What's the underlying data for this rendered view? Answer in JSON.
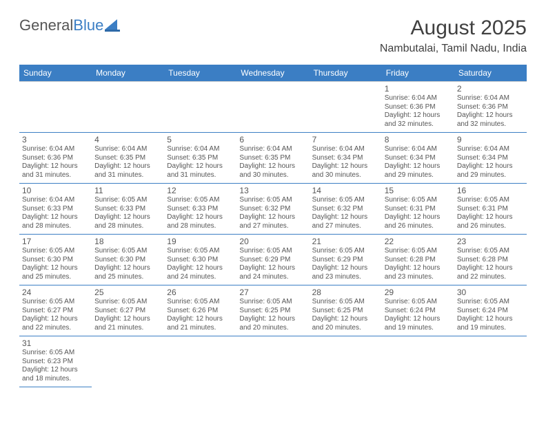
{
  "logo": {
    "text1": "General",
    "text2": "Blue"
  },
  "title": "August 2025",
  "location": "Nambutalai, Tamil Nadu, India",
  "colors": {
    "header_bg": "#3b7ec4",
    "header_fg": "#ffffff",
    "row_border": "#3b7ec4",
    "text": "#555555",
    "background": "#ffffff"
  },
  "weekdays": [
    "Sunday",
    "Monday",
    "Tuesday",
    "Wednesday",
    "Thursday",
    "Friday",
    "Saturday"
  ],
  "labels": {
    "sunrise": "Sunrise:",
    "sunset": "Sunset:",
    "daylight": "Daylight:"
  },
  "days": {
    "1": {
      "sunrise": "6:04 AM",
      "sunset": "6:36 PM",
      "daylight": "12 hours and 32 minutes."
    },
    "2": {
      "sunrise": "6:04 AM",
      "sunset": "6:36 PM",
      "daylight": "12 hours and 32 minutes."
    },
    "3": {
      "sunrise": "6:04 AM",
      "sunset": "6:36 PM",
      "daylight": "12 hours and 31 minutes."
    },
    "4": {
      "sunrise": "6:04 AM",
      "sunset": "6:35 PM",
      "daylight": "12 hours and 31 minutes."
    },
    "5": {
      "sunrise": "6:04 AM",
      "sunset": "6:35 PM",
      "daylight": "12 hours and 31 minutes."
    },
    "6": {
      "sunrise": "6:04 AM",
      "sunset": "6:35 PM",
      "daylight": "12 hours and 30 minutes."
    },
    "7": {
      "sunrise": "6:04 AM",
      "sunset": "6:34 PM",
      "daylight": "12 hours and 30 minutes."
    },
    "8": {
      "sunrise": "6:04 AM",
      "sunset": "6:34 PM",
      "daylight": "12 hours and 29 minutes."
    },
    "9": {
      "sunrise": "6:04 AM",
      "sunset": "6:34 PM",
      "daylight": "12 hours and 29 minutes."
    },
    "10": {
      "sunrise": "6:04 AM",
      "sunset": "6:33 PM",
      "daylight": "12 hours and 28 minutes."
    },
    "11": {
      "sunrise": "6:05 AM",
      "sunset": "6:33 PM",
      "daylight": "12 hours and 28 minutes."
    },
    "12": {
      "sunrise": "6:05 AM",
      "sunset": "6:33 PM",
      "daylight": "12 hours and 28 minutes."
    },
    "13": {
      "sunrise": "6:05 AM",
      "sunset": "6:32 PM",
      "daylight": "12 hours and 27 minutes."
    },
    "14": {
      "sunrise": "6:05 AM",
      "sunset": "6:32 PM",
      "daylight": "12 hours and 27 minutes."
    },
    "15": {
      "sunrise": "6:05 AM",
      "sunset": "6:31 PM",
      "daylight": "12 hours and 26 minutes."
    },
    "16": {
      "sunrise": "6:05 AM",
      "sunset": "6:31 PM",
      "daylight": "12 hours and 26 minutes."
    },
    "17": {
      "sunrise": "6:05 AM",
      "sunset": "6:30 PM",
      "daylight": "12 hours and 25 minutes."
    },
    "18": {
      "sunrise": "6:05 AM",
      "sunset": "6:30 PM",
      "daylight": "12 hours and 25 minutes."
    },
    "19": {
      "sunrise": "6:05 AM",
      "sunset": "6:30 PM",
      "daylight": "12 hours and 24 minutes."
    },
    "20": {
      "sunrise": "6:05 AM",
      "sunset": "6:29 PM",
      "daylight": "12 hours and 24 minutes."
    },
    "21": {
      "sunrise": "6:05 AM",
      "sunset": "6:29 PM",
      "daylight": "12 hours and 23 minutes."
    },
    "22": {
      "sunrise": "6:05 AM",
      "sunset": "6:28 PM",
      "daylight": "12 hours and 23 minutes."
    },
    "23": {
      "sunrise": "6:05 AM",
      "sunset": "6:28 PM",
      "daylight": "12 hours and 22 minutes."
    },
    "24": {
      "sunrise": "6:05 AM",
      "sunset": "6:27 PM",
      "daylight": "12 hours and 22 minutes."
    },
    "25": {
      "sunrise": "6:05 AM",
      "sunset": "6:27 PM",
      "daylight": "12 hours and 21 minutes."
    },
    "26": {
      "sunrise": "6:05 AM",
      "sunset": "6:26 PM",
      "daylight": "12 hours and 21 minutes."
    },
    "27": {
      "sunrise": "6:05 AM",
      "sunset": "6:25 PM",
      "daylight": "12 hours and 20 minutes."
    },
    "28": {
      "sunrise": "6:05 AM",
      "sunset": "6:25 PM",
      "daylight": "12 hours and 20 minutes."
    },
    "29": {
      "sunrise": "6:05 AM",
      "sunset": "6:24 PM",
      "daylight": "12 hours and 19 minutes."
    },
    "30": {
      "sunrise": "6:05 AM",
      "sunset": "6:24 PM",
      "daylight": "12 hours and 19 minutes."
    },
    "31": {
      "sunrise": "6:05 AM",
      "sunset": "6:23 PM",
      "daylight": "12 hours and 18 minutes."
    }
  },
  "grid": [
    [
      null,
      null,
      null,
      null,
      null,
      "1",
      "2"
    ],
    [
      "3",
      "4",
      "5",
      "6",
      "7",
      "8",
      "9"
    ],
    [
      "10",
      "11",
      "12",
      "13",
      "14",
      "15",
      "16"
    ],
    [
      "17",
      "18",
      "19",
      "20",
      "21",
      "22",
      "23"
    ],
    [
      "24",
      "25",
      "26",
      "27",
      "28",
      "29",
      "30"
    ],
    [
      "31",
      null,
      null,
      null,
      null,
      null,
      null
    ]
  ]
}
